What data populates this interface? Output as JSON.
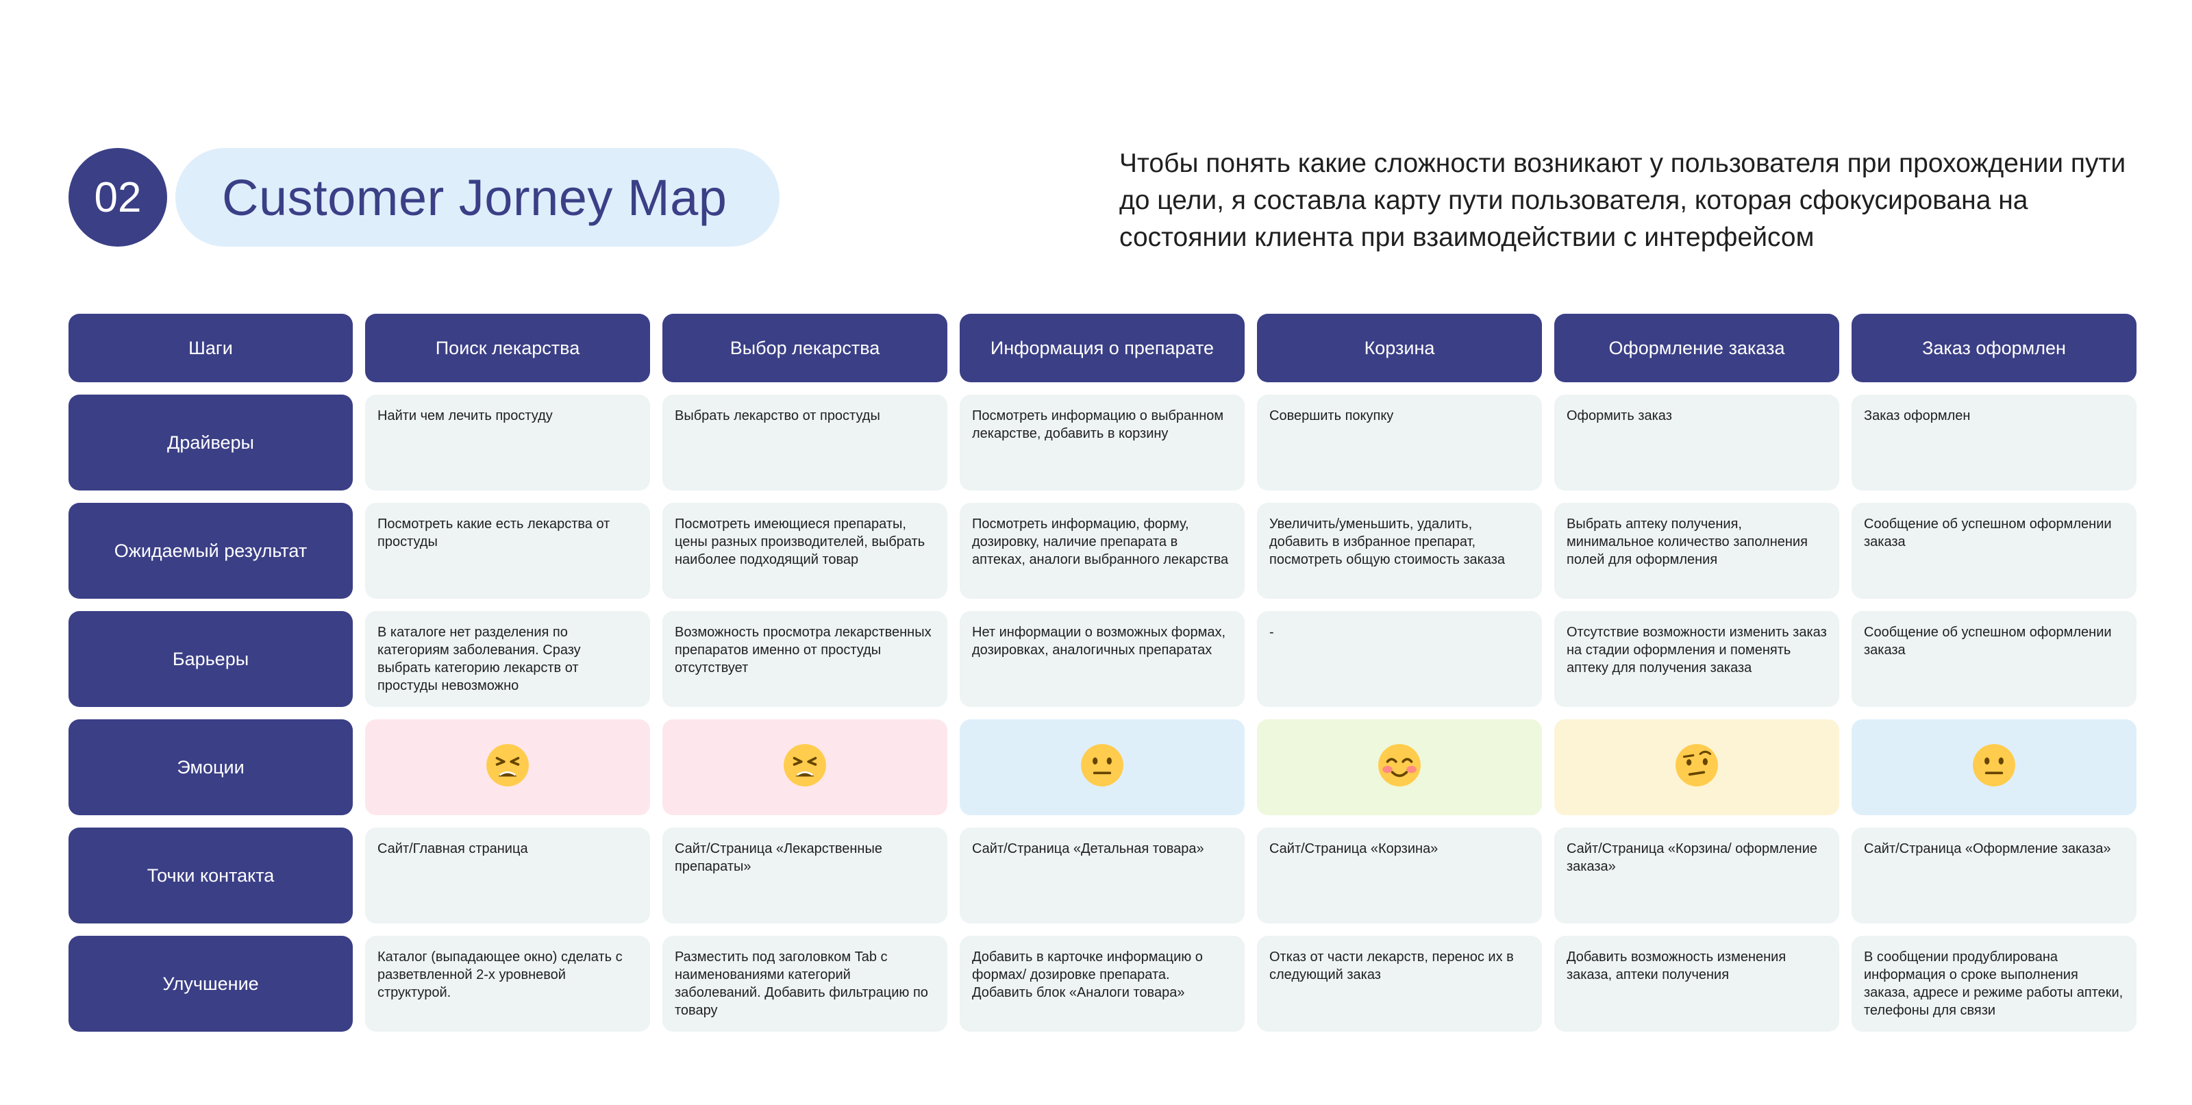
{
  "header": {
    "number": "02",
    "title": "Customer Jorney Map",
    "intro": "Чтобы понять какие сложности возникают у пользователя при прохождении пути до цели, я составла карту пути пользователя, которая сфокусирована на состоянии клиента при взаимодействии с интерфейсом"
  },
  "table": {
    "corner": "Шаги",
    "steps": [
      "Поиск лекарства",
      "Выбор лекарства",
      "Информация о препарате",
      "Корзина",
      "Оформление заказа",
      "Заказ оформлен"
    ],
    "rows": {
      "drivers": {
        "label": "Драйверы",
        "cells": [
          "Найти  чем лечить простуду",
          "Выбрать лекарство от простуды",
          "Посмотреть информацию о выбранном лекарстве, добавить в корзину",
          "Совершить покупку",
          "Оформить заказ",
          "Заказ оформлен"
        ]
      },
      "expected": {
        "label": "Ожидаемый результат",
        "cells": [
          "Посмотреть какие есть лекарства от простуды",
          "Посмотреть имеющиеся препараты, цены разных производителей, выбрать наиболее подходящий товар",
          "Посмотреть информацию, форму, дозировку, наличие препарата в аптеках, аналоги выбранного лекарства",
          "Увеличить/уменьшить, удалить, добавить в избранное препарат, посмотреть общую стоимость заказа",
          "Выбрать аптеку получения, минимальное количество заполнения полей для оформления",
          "Сообщение об успешном оформлении заказа"
        ]
      },
      "barriers": {
        "label": "Барьеры",
        "cells": [
          "В каталоге нет разделения по категориям заболевания. Сразу выбрать категорию лекарств от простуды невозможно",
          "Возможность просмотра лекарственных препаратов именно от простуды отсутствует",
          "Нет информации о возможных формах, дозировках, аналогичных препаратах",
          "-",
          "Отсутствие возможности изменить заказ на стадии оформления и поменять аптеку для получения заказа",
          "Сообщение об успешном оформлении заказа"
        ]
      },
      "emotions": {
        "label": "Эмоции",
        "cells": [
          {
            "icon": "tired-face-emoji-icon",
            "bg": "#fde7ec"
          },
          {
            "icon": "tired-face-emoji-icon",
            "bg": "#fde7ec"
          },
          {
            "icon": "neutral-face-emoji-icon",
            "bg": "#dfeffa"
          },
          {
            "icon": "smiling-blush-face-emoji-icon",
            "bg": "#eef8dc"
          },
          {
            "icon": "raised-eyebrow-face-emoji-icon",
            "bg": "#fdf4d6"
          },
          {
            "icon": "neutral-face-emoji-icon",
            "bg": "#dfeffa"
          }
        ]
      },
      "touchpoints": {
        "label": "Точки контакта",
        "cells": [
          "Сайт/Главная страница",
          "Сайт/Страница «Лекарственные препараты»",
          "Сайт/Страница «Детальная товара»",
          "Сайт/Страница «Корзина»",
          "Сайт/Страница «Корзина/ оформление заказа»",
          "Сайт/Страница «Оформление заказа»"
        ]
      },
      "improvements": {
        "label": "Улучшение",
        "cells": [
          "Каталог (выпадающее окно) сделать с разветвленной 2-х уровневой структурой.",
          "Разместить под заголовком Tab с наименованиями категорий заболеваний. Добавить фильтрацию по товару",
          "Добавить в карточке информацию о формах/ дозировке препарата. Добавить блок «Аналоги товара»",
          "Отказ от части лекарств, перенос их в следующий заказ",
          "Добавить возможность изменения заказа, аптеки получения",
          "В сообщении продублирована информация о сроке выполнения заказа, адресе и режиме работы аптеки, телефоны для связи"
        ]
      }
    }
  },
  "colors": {
    "navy": "#3b3f86",
    "cell": "#eef3f4",
    "pill": "#dfeefb"
  }
}
